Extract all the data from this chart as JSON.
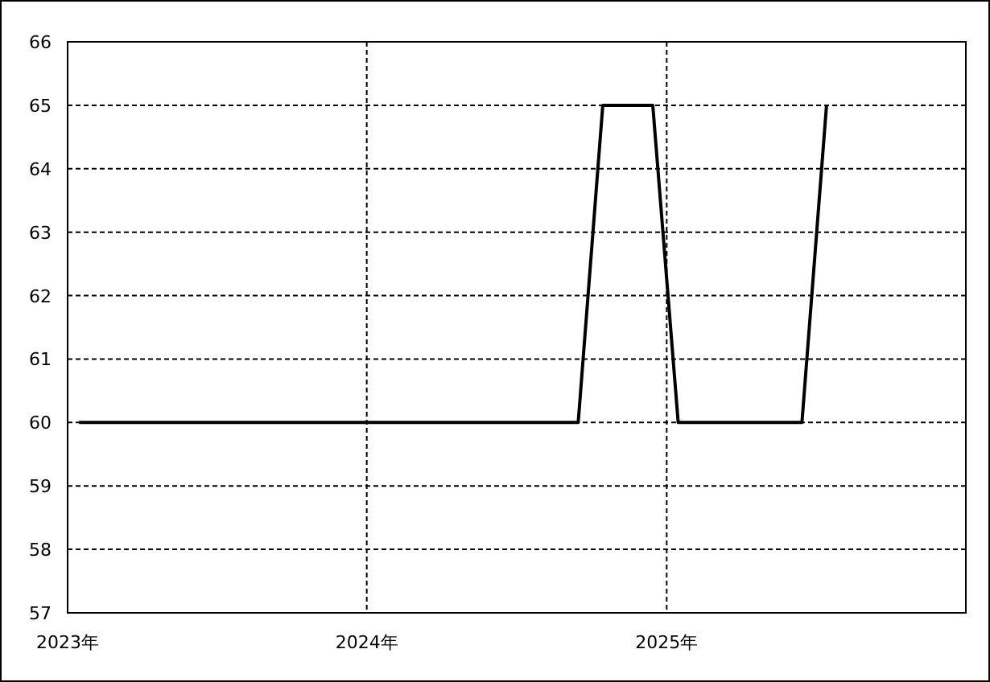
{
  "chart_data": {
    "type": "line",
    "x": [
      "2023-01-15",
      "2024-09-15",
      "2024-10-15",
      "2024-12-15",
      "2025-01-15",
      "2025-06-15",
      "2025-07-15"
    ],
    "series": [
      {
        "color": "#000000",
        "values": [
          60,
          60,
          65,
          65,
          60,
          60,
          65
        ]
      }
    ],
    "xlim": [
      "2023-01-01",
      "2026-01-01"
    ],
    "xticks": [
      {
        "value": "2023-01-01",
        "label": "2023年"
      },
      {
        "value": "2024-01-01",
        "label": "2024年"
      },
      {
        "value": "2025-01-01",
        "label": "2025年"
      }
    ],
    "ylim": [
      57,
      66
    ],
    "yticks": [
      57,
      58,
      59,
      60,
      61,
      62,
      63,
      64,
      65,
      66
    ],
    "grid": true,
    "marker": "none",
    "line_style": "solid"
  }
}
